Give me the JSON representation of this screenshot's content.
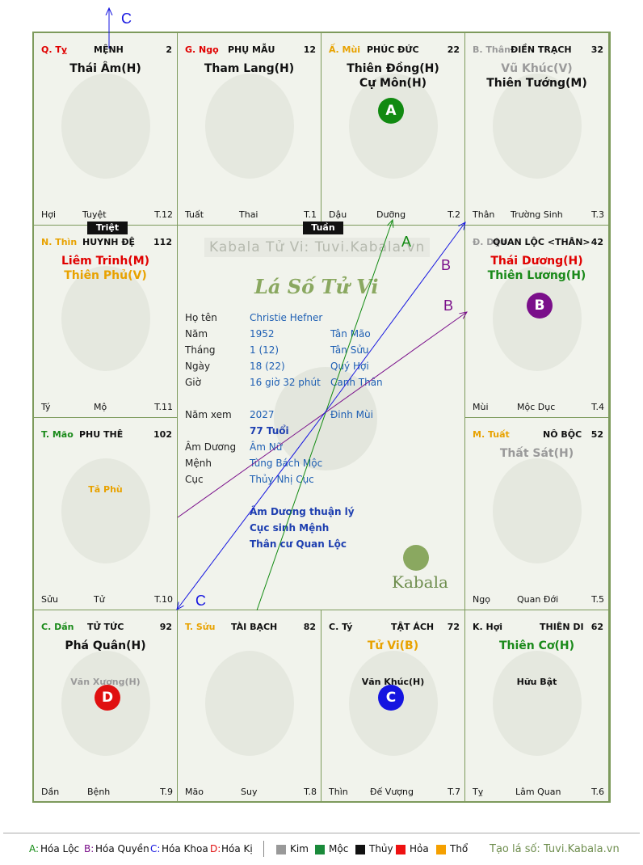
{
  "palaces": [
    {
      "id": "ty",
      "stem": "Q. Tỵ",
      "stem_color": "#e00000",
      "name": "MỆNH",
      "num": "2",
      "stars": [
        {
          "t": "Thái Âm(H)",
          "c": "#111111",
          "size": "big"
        }
      ],
      "bottom": {
        "left": "Hợi",
        "center": "Tuyệt",
        "right": "T.12"
      }
    },
    {
      "id": "ngo",
      "stem": "G. Ngọ",
      "stem_color": "#e00000",
      "name": "PHỤ MẪU",
      "num": "12",
      "stars": [
        {
          "t": "Tham Lang(H)",
          "c": "#111111",
          "size": "big"
        }
      ],
      "bottom": {
        "left": "Tuất",
        "center": "Thai",
        "right": "T.1"
      }
    },
    {
      "id": "mui",
      "stem": "Ấ. Mùi",
      "stem_color": "#e8a200",
      "name": "PHÚC ĐỨC",
      "num": "22",
      "stars": [
        {
          "t": "Thiên Đồng(H)",
          "c": "#111111",
          "size": "big"
        },
        {
          "t": "Cự Môn(H)",
          "c": "#111111",
          "size": "big"
        }
      ],
      "badge": "A",
      "bottom": {
        "left": "Dậu",
        "center": "Dưỡng",
        "right": "T.2"
      }
    },
    {
      "id": "than",
      "stem": "B. Thân",
      "stem_color": "#9a9a9a",
      "name": "ĐIỀN TRẠCH",
      "num": "32",
      "stars": [
        {
          "t": "Vũ Khúc(V)",
          "c": "#9a9a9a",
          "size": "big"
        },
        {
          "t": "Thiên Tướng(M)",
          "c": "#111111",
          "size": "big"
        }
      ],
      "bottom": {
        "left": "Thân",
        "center": "Trường Sinh",
        "right": "T.3"
      }
    },
    {
      "id": "thin",
      "stem": "N. Thìn",
      "stem_color": "#e8a200",
      "name": "HUYNH ĐỆ",
      "num": "112",
      "stars": [
        {
          "t": "Liêm Trinh(M)",
          "c": "#e00000",
          "size": "big"
        },
        {
          "t": "Thiên Phủ(V)",
          "c": "#e8a200",
          "size": "big"
        }
      ],
      "bottom": {
        "left": "Tý",
        "center": "Mộ",
        "right": "T.11"
      }
    },
    {
      "id": "dau",
      "stem": "Đ. Dậu",
      "stem_color": "#9a9a9a",
      "name": "QUAN LỘC <THÂN>",
      "num": "42",
      "stars": [
        {
          "t": "Thái Dương(H)",
          "c": "#e00000",
          "size": "big"
        },
        {
          "t": "Thiên Lương(H)",
          "c": "#1a8a1a",
          "size": "big"
        }
      ],
      "badge": "B",
      "bottom": {
        "left": "Mùi",
        "center": "Mộc Dục",
        "right": "T.4"
      }
    },
    {
      "id": "mao",
      "stem": "T. Mão",
      "stem_color": "#1a8a1a",
      "name": "PHU THÊ",
      "num": "102",
      "stars": [
        {
          "t": "Tả Phù",
          "c": "#e8a200",
          "size": "small"
        }
      ],
      "bottom": {
        "left": "Sửu",
        "center": "Tử",
        "right": "T.10"
      }
    },
    {
      "id": "tuat",
      "stem": "M. Tuất",
      "stem_color": "#e8a200",
      "name": "NÔ BỘC",
      "num": "52",
      "stars": [
        {
          "t": "Thất Sát(H)",
          "c": "#9a9a9a",
          "size": "big"
        }
      ],
      "bottom": {
        "left": "Ngọ",
        "center": "Quan Đới",
        "right": "T.5"
      }
    },
    {
      "id": "dan",
      "stem": "C. Dần",
      "stem_color": "#1a8a1a",
      "name": "TỬ TỨC",
      "num": "92",
      "stars": [
        {
          "t": "Phá Quân(H)",
          "c": "#111111",
          "size": "big"
        },
        {
          "t": "Văn Xương(H)",
          "c": "#9a9a9a",
          "size": "small"
        }
      ],
      "badge": "D",
      "bottom": {
        "left": "Dần",
        "center": "Bệnh",
        "right": "T.9"
      }
    },
    {
      "id": "suu",
      "stem": "T. Sửu",
      "stem_color": "#e8a200",
      "name": "TÀI BẠCH",
      "num": "82",
      "stars": [],
      "bottom": {
        "left": "Mão",
        "center": "Suy",
        "right": "T.8"
      }
    },
    {
      "id": "ty2",
      "stem": "C. Tý",
      "stem_color": "#111111",
      "name": "TẬT ÁCH",
      "num": "72",
      "stars": [
        {
          "t": "Tử Vi(B)",
          "c": "#e8a200",
          "size": "big"
        },
        {
          "t": "Văn Khúc(H)",
          "c": "#111111",
          "size": "small"
        }
      ],
      "badge": "C",
      "bottom": {
        "left": "Thìn",
        "center": "Đế Vượng",
        "right": "T.7"
      }
    },
    {
      "id": "hoi",
      "stem": "K. Hợi",
      "stem_color": "#111111",
      "name": "THIÊN DI",
      "num": "62",
      "stars": [
        {
          "t": "Thiên Cơ(H)",
          "c": "#1a8a1a",
          "size": "big"
        },
        {
          "t": "Hữu Bật",
          "c": "#111111",
          "size": "small"
        }
      ],
      "bottom": {
        "left": "Tỵ",
        "center": "Lâm Quan",
        "right": "T.6"
      }
    }
  ],
  "badges": {
    "A": {
      "label": "A",
      "color": "#118a11"
    },
    "B": {
      "label": "B",
      "color": "#7a0f8a"
    },
    "C": {
      "label": "C",
      "color": "#1515e0"
    },
    "D": {
      "label": "D",
      "color": "#e01010"
    }
  },
  "tags": {
    "triet": "Triệt",
    "tuan": "Tuần"
  },
  "center": {
    "watermark": "Kabala Tử Vi: Tuvi.Kabala.vn",
    "title": "Lá Số Tử Vi",
    "rows": [
      {
        "label": "Họ tên",
        "v1": "Christie Hefner",
        "v2": ""
      },
      {
        "label": "Năm",
        "v1": "1952",
        "v2": "Tân Mão"
      },
      {
        "label": "Tháng",
        "v1": "1  (12)",
        "v2": "Tân Sửu"
      },
      {
        "label": "Ngày",
        "v1": "18  (22)",
        "v2": "Quý Hợi"
      },
      {
        "label": "Giờ",
        "v1": "16 giờ 32 phút",
        "v2": "Canh Thân"
      }
    ],
    "nam_xem": {
      "label": "Năm xem",
      "v1": "2027",
      "v2": "Đinh Mùi",
      "age": "77 Tuổi"
    },
    "rows2": [
      {
        "label": "Âm Dương",
        "v1": "Âm Nữ"
      },
      {
        "label": "Mệnh",
        "v1": "Tùng Bách Mộc"
      },
      {
        "label": "Cục",
        "v1": "Thủy Nhị Cục"
      }
    ],
    "notes": [
      "Âm Dương thuận lý",
      "Cục sinh Mệnh",
      "Thân cư Quan Lộc"
    ],
    "brand": "Kabala"
  },
  "arrow_labels": {
    "top_c": "C",
    "a": "A",
    "b1": "B",
    "b2": "B",
    "c": "C"
  },
  "legend": {
    "items": [
      {
        "key": "A:",
        "text": "Hóa Lộc",
        "color": "#118a11"
      },
      {
        "key": "B:",
        "text": "Hóa Quyền",
        "color": "#7a0f8a"
      },
      {
        "key": "C:",
        "text": "Hóa Khoa",
        "color": "#1515e0"
      },
      {
        "key": "D:",
        "text": "Hóa Kị",
        "color": "#e01010"
      }
    ],
    "elements": [
      {
        "text": "Kim",
        "color": "#999999"
      },
      {
        "text": "Mộc",
        "color": "#1a8a3a"
      },
      {
        "text": "Thủy",
        "color": "#111111"
      },
      {
        "text": "Hỏa",
        "color": "#ee1111"
      },
      {
        "text": "Thổ",
        "color": "#f5a000"
      }
    ],
    "site": "Tạo lá số: Tuvi.Kabala.vn"
  }
}
